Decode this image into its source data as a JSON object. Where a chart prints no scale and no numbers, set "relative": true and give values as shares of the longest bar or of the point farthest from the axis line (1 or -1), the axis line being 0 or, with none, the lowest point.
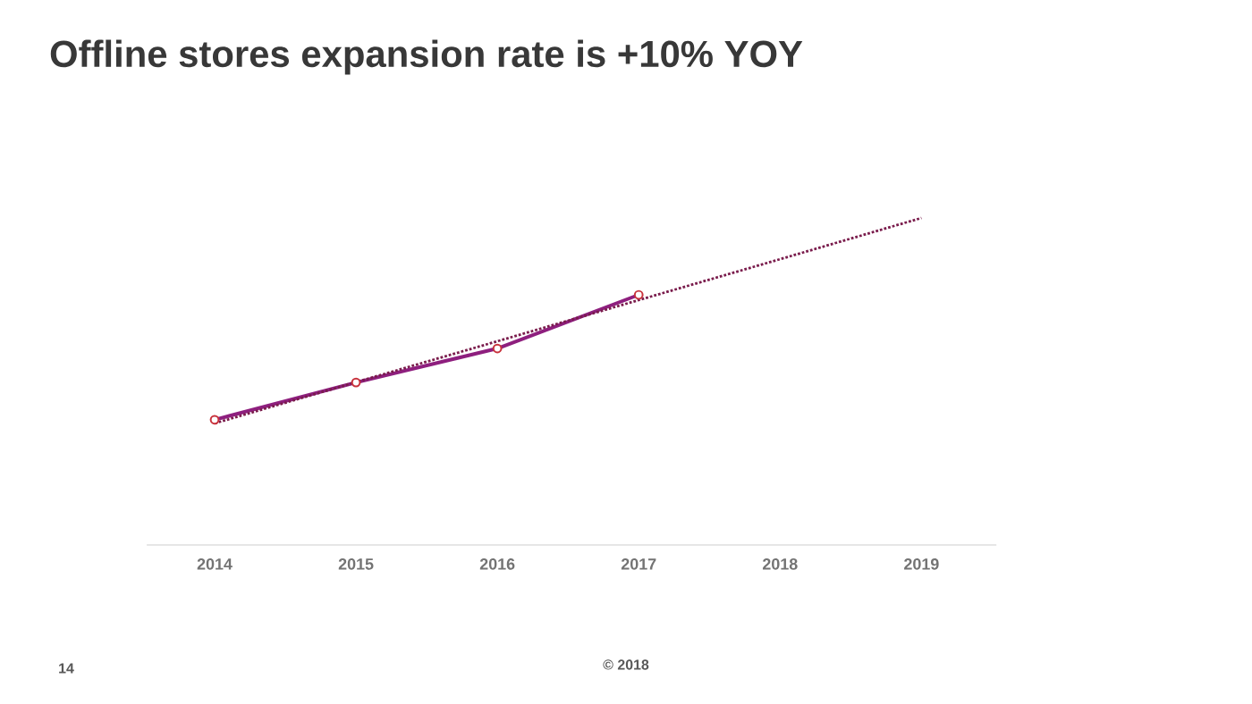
{
  "chart_data": {
    "type": "line",
    "title": "Offline stores expansion rate is +10% YOY",
    "relative": true,
    "categories": [
      "2014",
      "2015",
      "2016",
      "2017",
      "2018",
      "2019"
    ],
    "series": [
      {
        "color": "#8e1f7e",
        "values": [
          0.383,
          0.497,
          0.601,
          0.765,
          null,
          null
        ],
        "marker": "circle",
        "line_style": "solid"
      },
      {
        "color": "#7a1c4c",
        "values": [
          0.372,
          0.498,
          0.623,
          0.749,
          0.874,
          1.0
        ],
        "marker": "none",
        "line_style": "dotted"
      }
    ],
    "annotations": [
      "© 2018",
      "14"
    ]
  }
}
